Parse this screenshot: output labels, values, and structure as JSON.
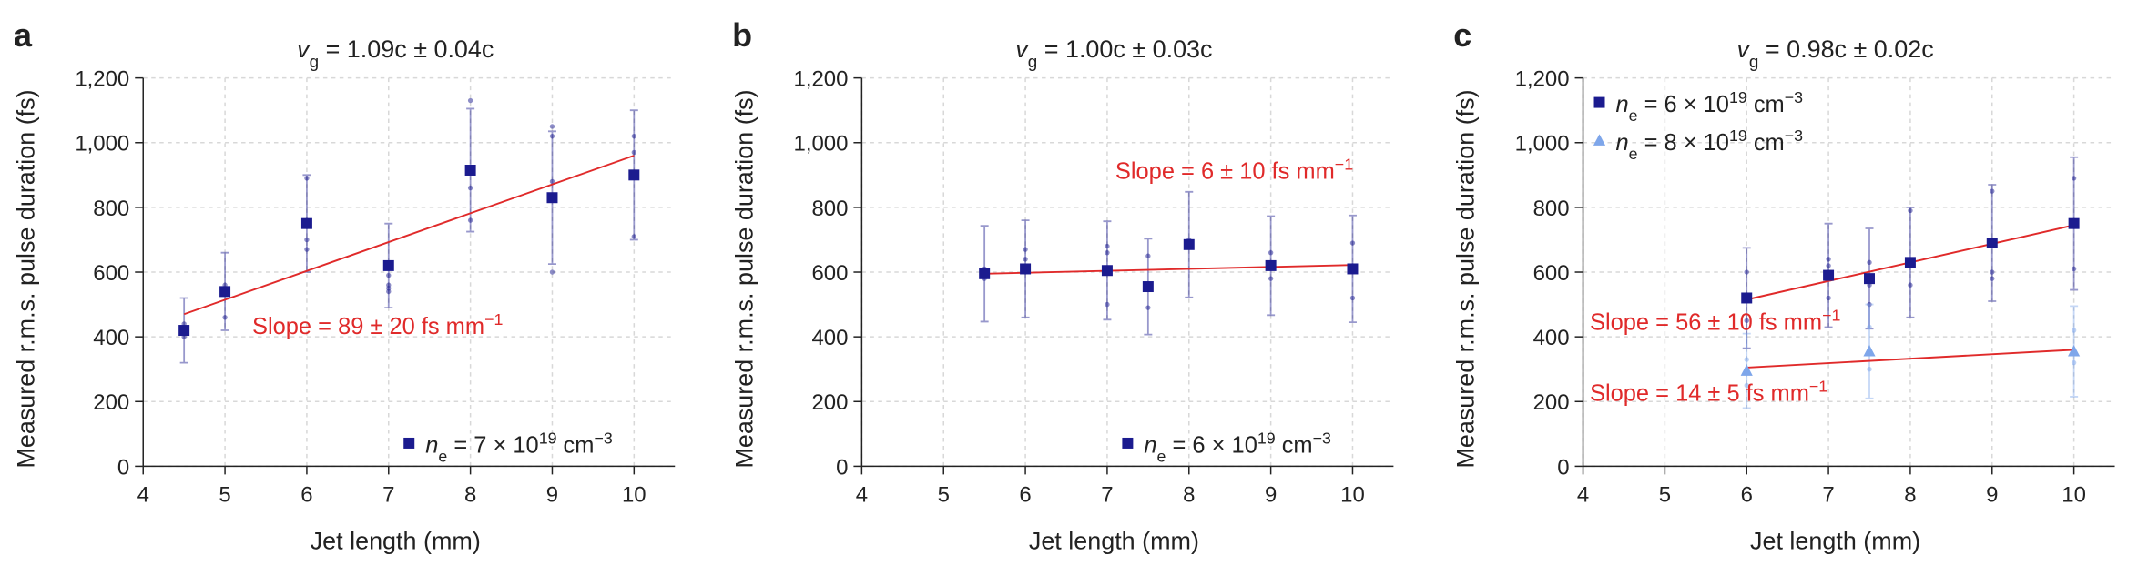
{
  "chart_data": [
    {
      "type": "scatter",
      "panel": "a",
      "title": [
        "v",
        "g",
        " = 1.09c ± 0.04c"
      ],
      "x_label": "Jet length (mm)",
      "y_label": "Measured r.m.s. pulse duration (fs)",
      "xlim": [
        4,
        10.5
      ],
      "xticks": [
        4,
        5,
        6,
        7,
        8,
        9,
        10
      ],
      "ylim": [
        0,
        1200
      ],
      "yticks": [
        0,
        200,
        400,
        600,
        800,
        {
          "value": 1000,
          "label": "1,000"
        },
        {
          "value": 1200,
          "label": "1,200"
        }
      ],
      "grid": true,
      "legend": "lower right",
      "series": [
        {
          "name": [
            "n",
            "e",
            " = 7 × 10",
            "19",
            " cm",
            "−3"
          ],
          "color": "#1b1b8f",
          "marker": "square",
          "x": [
            4.5,
            5,
            6,
            7,
            8,
            9,
            10
          ],
          "values": [
            420,
            540,
            750,
            620,
            915,
            830,
            900
          ],
          "errors": [
            100,
            120,
            150,
            130,
            190,
            205,
            200
          ],
          "dot_x": [
            4.5,
            4.5,
            4.5,
            5,
            5,
            5,
            6,
            6,
            6,
            6,
            7,
            7,
            7,
            7,
            8,
            8,
            8,
            9,
            9,
            9,
            9,
            10,
            10,
            10
          ],
          "dot_values": [
            440,
            410,
            400,
            560,
            540,
            460,
            890,
            760,
            700,
            670,
            590,
            560,
            550,
            540,
            1130,
            860,
            760,
            1050,
            1020,
            880,
            600,
            1020,
            970,
            710
          ]
        }
      ],
      "fits": [
        {
          "x": [
            4.5,
            10
          ],
          "values": [
            470,
            960
          ],
          "label": [
            "Slope = 89 ± 20 fs mm",
            "−1"
          ]
        }
      ]
    },
    {
      "type": "scatter",
      "panel": "b",
      "title": [
        "v",
        "g",
        " = 1.00c ± 0.03c"
      ],
      "x_label": "Jet length (mm)",
      "y_label": "Measured r.m.s. pulse duration (fs)",
      "xlim": [
        4,
        10.5
      ],
      "xticks": [
        4,
        5,
        6,
        7,
        8,
        9,
        10
      ],
      "ylim": [
        0,
        1200
      ],
      "yticks": [
        0,
        200,
        400,
        600,
        800,
        {
          "value": 1000,
          "label": "1,000"
        },
        {
          "value": 1200,
          "label": "1,200"
        }
      ],
      "grid": true,
      "legend": "lower right",
      "series": [
        {
          "name": [
            "n",
            "e",
            " = 6 × 10",
            "19",
            " cm",
            "−3"
          ],
          "color": "#1b1b8f",
          "marker": "square",
          "x": [
            5.5,
            6,
            7,
            7.5,
            8,
            9,
            10
          ],
          "values": [
            595,
            610,
            605,
            555,
            685,
            620,
            610
          ],
          "errors": [
            148,
            150,
            152,
            148,
            163,
            153,
            165
          ],
          "dot_x": [
            5.5,
            5.5,
            6,
            6,
            6,
            7,
            7,
            7,
            7.5,
            7.5,
            7.5,
            8,
            8,
            9,
            9,
            9,
            10,
            10,
            10
          ],
          "dot_values": [
            610,
            580,
            670,
            640,
            600,
            680,
            660,
            500,
            650,
            560,
            490,
            700,
            680,
            660,
            630,
            580,
            690,
            620,
            520
          ]
        }
      ],
      "fits": [
        {
          "x": [
            5.5,
            10
          ],
          "values": [
            595,
            622
          ],
          "label": [
            "Slope = 6 ± 10 fs mm",
            "−1"
          ]
        }
      ]
    },
    {
      "type": "scatter",
      "panel": "c",
      "title": [
        "v",
        "g",
        " = 0.98c ± 0.02c"
      ],
      "x_label": "Jet length (mm)",
      "y_label": "Measured r.m.s. pulse duration (fs)",
      "xlim": [
        4,
        10.5
      ],
      "xticks": [
        4,
        5,
        6,
        7,
        8,
        9,
        10
      ],
      "ylim": [
        0,
        1200
      ],
      "yticks": [
        0,
        200,
        400,
        600,
        800,
        {
          "value": 1000,
          "label": "1,000"
        },
        {
          "value": 1200,
          "label": "1,200"
        }
      ],
      "grid": true,
      "legend": "upper left",
      "series": [
        {
          "name": [
            "n",
            "e",
            " = 6 × 10",
            "19",
            " cm",
            "−3"
          ],
          "color": "#1b1b8f",
          "marker": "square",
          "x": [
            6,
            7,
            7.5,
            8,
            9,
            10
          ],
          "values": [
            520,
            590,
            580,
            630,
            690,
            750
          ],
          "errors": [
            155,
            160,
            155,
            170,
            180,
            205
          ],
          "dot_x": [
            6,
            6,
            6,
            7,
            7,
            7,
            7.5,
            7.5,
            7.5,
            8,
            8,
            8,
            9,
            9,
            9,
            10,
            10
          ],
          "dot_values": [
            600,
            530,
            450,
            640,
            620,
            520,
            630,
            560,
            500,
            790,
            620,
            560,
            850,
            600,
            580,
            890,
            610
          ]
        },
        {
          "name": [
            "n",
            "e",
            " = 8 × 10",
            "19",
            " cm",
            "−3"
          ],
          "color": "#7ea6ea",
          "marker": "triangle",
          "x": [
            6,
            7.5,
            10
          ],
          "values": [
            295,
            355,
            355
          ],
          "errors": [
            115,
            145,
            140
          ],
          "dot_x": [
            6,
            6,
            7.5,
            7.5,
            10,
            10
          ],
          "dot_values": [
            330,
            250,
            430,
            300,
            420,
            320
          ]
        }
      ],
      "fits": [
        {
          "x": [
            6,
            10
          ],
          "values": [
            515,
            745
          ],
          "label": [
            "Slope = 56 ± 10 fs mm",
            "−1"
          ]
        },
        {
          "x": [
            6,
            10
          ],
          "values": [
            305,
            360
          ],
          "label": [
            "Slope = 14 ± 5 fs mm",
            "−1"
          ]
        }
      ]
    }
  ]
}
